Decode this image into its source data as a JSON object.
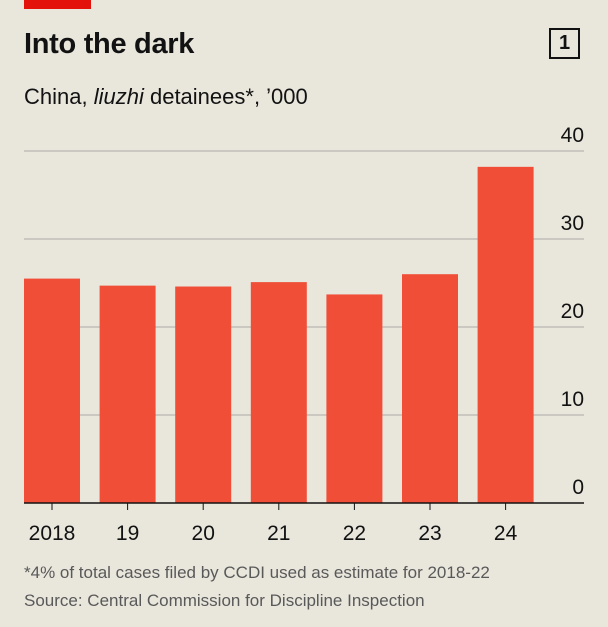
{
  "header": {
    "title": "Into the dark",
    "chart_number": "1",
    "subtitle_prefix": "China, ",
    "subtitle_italic": "liuzhi",
    "subtitle_suffix": " detainees*, ’000"
  },
  "footer": {
    "footnote": "*4% of total cases filed by CCDI used as estimate for 2018-22",
    "source": "Source: Central Commission for Discipline Inspection"
  },
  "colors": {
    "bar": "#f04e37",
    "accent": "#e3120b",
    "grid": "#b7b6ae",
    "background": "#e9e6dc"
  },
  "chart_data": {
    "type": "bar",
    "categories": [
      "2018",
      "19",
      "20",
      "21",
      "22",
      "23",
      "24"
    ],
    "values": [
      25.5,
      24.7,
      24.6,
      25.1,
      23.7,
      26.0,
      38.2
    ],
    "title": "Into the dark",
    "subtitle": "China, liuzhi detainees*, ’000",
    "xlabel": "",
    "ylabel": "",
    "ylim": [
      0,
      40
    ],
    "yticks": [
      0,
      10,
      20,
      30,
      40
    ],
    "grid": true
  }
}
